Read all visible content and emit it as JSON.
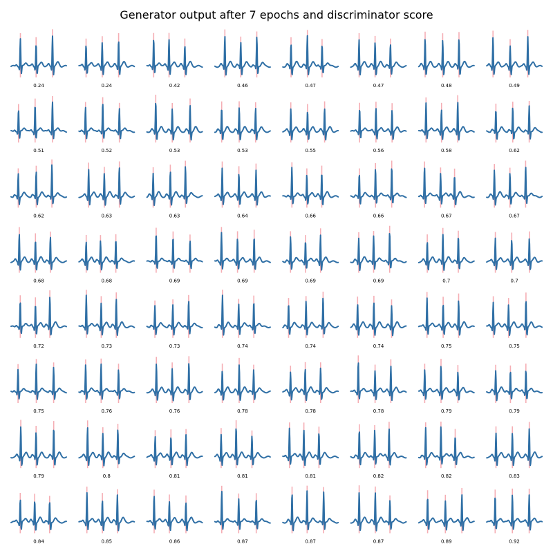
{
  "title": "Generator output after 7 epochs and discriminator score",
  "colors": {
    "signal": "#2f6fa5",
    "r_peak_marker": "#f4a0a8"
  },
  "chart_data": {
    "type": "line",
    "title": "Generator output after 7 epochs and discriminator score",
    "grid": {
      "rows": 8,
      "cols": 8
    },
    "axes": "off",
    "scores": [
      "0.24",
      "0.24",
      "0.42",
      "0.46",
      "0.47",
      "0.47",
      "0.48",
      "0.49",
      "0.51",
      "0.52",
      "0.53",
      "0.53",
      "0.55",
      "0.56",
      "0.58",
      "0.62",
      "0.62",
      "0.63",
      "0.63",
      "0.64",
      "0.66",
      "0.66",
      "0.67",
      "0.67",
      "0.68",
      "0.68",
      "0.69",
      "0.69",
      "0.69",
      "0.69",
      "0.7",
      "0.7",
      "0.72",
      "0.73",
      "0.73",
      "0.74",
      "0.74",
      "0.74",
      "0.75",
      "0.75",
      "0.75",
      "0.76",
      "0.76",
      "0.78",
      "0.78",
      "0.78",
      "0.79",
      "0.79",
      "0.79",
      "0.8",
      "0.81",
      "0.81",
      "0.81",
      "0.82",
      "0.82",
      "0.83",
      "0.84",
      "0.85",
      "0.86",
      "0.87",
      "0.87",
      "0.87",
      "0.89",
      "0.92"
    ]
  }
}
